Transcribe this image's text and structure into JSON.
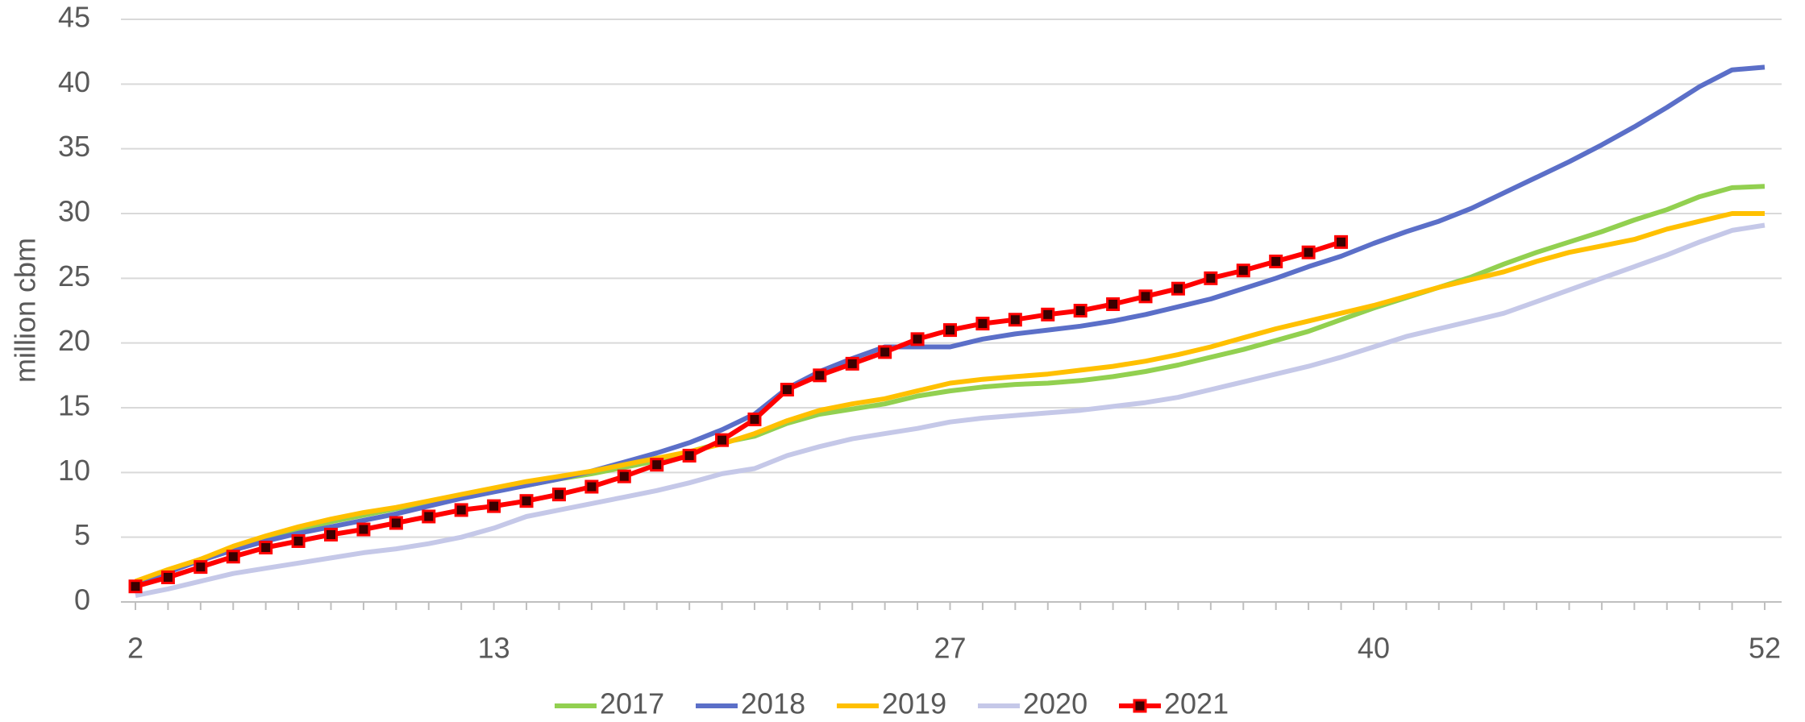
{
  "chart_data": {
    "type": "line",
    "ylabel": "million cbm",
    "x": [
      2,
      3,
      4,
      5,
      6,
      7,
      8,
      9,
      10,
      11,
      12,
      13,
      14,
      15,
      16,
      17,
      18,
      19,
      20,
      21,
      22,
      23,
      24,
      25,
      26,
      27,
      28,
      29,
      30,
      31,
      32,
      33,
      34,
      35,
      36,
      37,
      38,
      39,
      40,
      41,
      42,
      43,
      44,
      45,
      46,
      47,
      48,
      49,
      50,
      51,
      52
    ],
    "xlim": [
      2,
      52
    ],
    "xticks": [
      2,
      13,
      27,
      40,
      52
    ],
    "ylim": [
      0,
      45
    ],
    "yticks": [
      0,
      5,
      10,
      15,
      20,
      25,
      30,
      35,
      40,
      45
    ],
    "grid": true,
    "legend": "bottom",
    "series": [
      {
        "name": "2017",
        "color": "#92d050",
        "values": [
          1.5,
          2.4,
          3.3,
          4.1,
          4.9,
          5.6,
          6.2,
          6.7,
          7.2,
          7.7,
          8.2,
          8.6,
          9.0,
          9.5,
          9.9,
          10.4,
          10.9,
          11.6,
          12.3,
          12.8,
          13.8,
          14.5,
          14.9,
          15.3,
          15.9,
          16.3,
          16.6,
          16.8,
          16.9,
          17.1,
          17.4,
          17.8,
          18.3,
          18.9,
          19.5,
          20.2,
          20.9,
          21.8,
          22.7,
          23.5,
          24.3,
          25.1,
          26.1,
          27.0,
          27.8,
          28.6,
          29.5,
          30.3,
          31.3,
          32.0,
          32.1
        ]
      },
      {
        "name": "2018",
        "color": "#5b6fc8",
        "values": [
          1.5,
          2.3,
          3.2,
          4.0,
          4.7,
          5.3,
          5.8,
          6.3,
          6.8,
          7.4,
          8.0,
          8.5,
          9.0,
          9.5,
          10.1,
          10.8,
          11.5,
          12.3,
          13.3,
          14.5,
          16.5,
          17.8,
          18.8,
          19.7,
          19.7,
          19.7,
          20.3,
          20.7,
          21.0,
          21.3,
          21.7,
          22.2,
          22.8,
          23.4,
          24.2,
          25.0,
          25.9,
          26.7,
          27.7,
          28.6,
          29.4,
          30.4,
          31.6,
          32.8,
          34.0,
          35.3,
          36.7,
          38.2,
          39.8,
          41.1,
          41.3
        ]
      },
      {
        "name": "2019",
        "color": "#ffc000",
        "values": [
          1.6,
          2.5,
          3.3,
          4.3,
          5.1,
          5.8,
          6.4,
          6.9,
          7.3,
          7.8,
          8.3,
          8.8,
          9.3,
          9.7,
          10.1,
          10.6,
          11.1,
          11.6,
          12.2,
          13.0,
          14.0,
          14.8,
          15.3,
          15.7,
          16.3,
          16.9,
          17.2,
          17.4,
          17.6,
          17.9,
          18.2,
          18.6,
          19.1,
          19.7,
          20.4,
          21.1,
          21.7,
          22.3,
          22.9,
          23.6,
          24.3,
          24.9,
          25.5,
          26.3,
          27.0,
          27.5,
          28.0,
          28.8,
          29.4,
          30.0,
          30.0
        ]
      },
      {
        "name": "2020",
        "color": "#c5c8e8",
        "values": [
          0.5,
          1.0,
          1.6,
          2.2,
          2.6,
          3.0,
          3.4,
          3.8,
          4.1,
          4.5,
          5.0,
          5.7,
          6.6,
          7.1,
          7.6,
          8.1,
          8.6,
          9.2,
          9.9,
          10.3,
          11.3,
          12.0,
          12.6,
          13.0,
          13.4,
          13.9,
          14.2,
          14.4,
          14.6,
          14.8,
          15.1,
          15.4,
          15.8,
          16.4,
          17.0,
          17.6,
          18.2,
          18.9,
          19.7,
          20.5,
          21.1,
          21.7,
          22.3,
          23.2,
          24.1,
          25.0,
          25.9,
          26.8,
          27.8,
          28.7,
          29.1
        ]
      },
      {
        "name": "2021",
        "color": "#ff0000",
        "marker": "square",
        "marker_color": "#3a0000",
        "values": [
          1.2,
          1.9,
          2.7,
          3.5,
          4.2,
          4.7,
          5.2,
          5.6,
          6.1,
          6.6,
          7.1,
          7.4,
          7.8,
          8.3,
          8.9,
          9.7,
          10.6,
          11.3,
          12.5,
          14.1,
          16.4,
          17.5,
          18.4,
          19.3,
          20.3,
          21.0,
          21.5,
          21.8,
          22.2,
          22.5,
          23.0,
          23.6,
          24.2,
          25.0,
          25.6,
          26.3,
          27.0,
          27.8,
          null,
          null,
          null,
          null,
          null,
          null,
          null,
          null,
          null,
          null,
          null,
          null,
          null
        ]
      }
    ]
  }
}
